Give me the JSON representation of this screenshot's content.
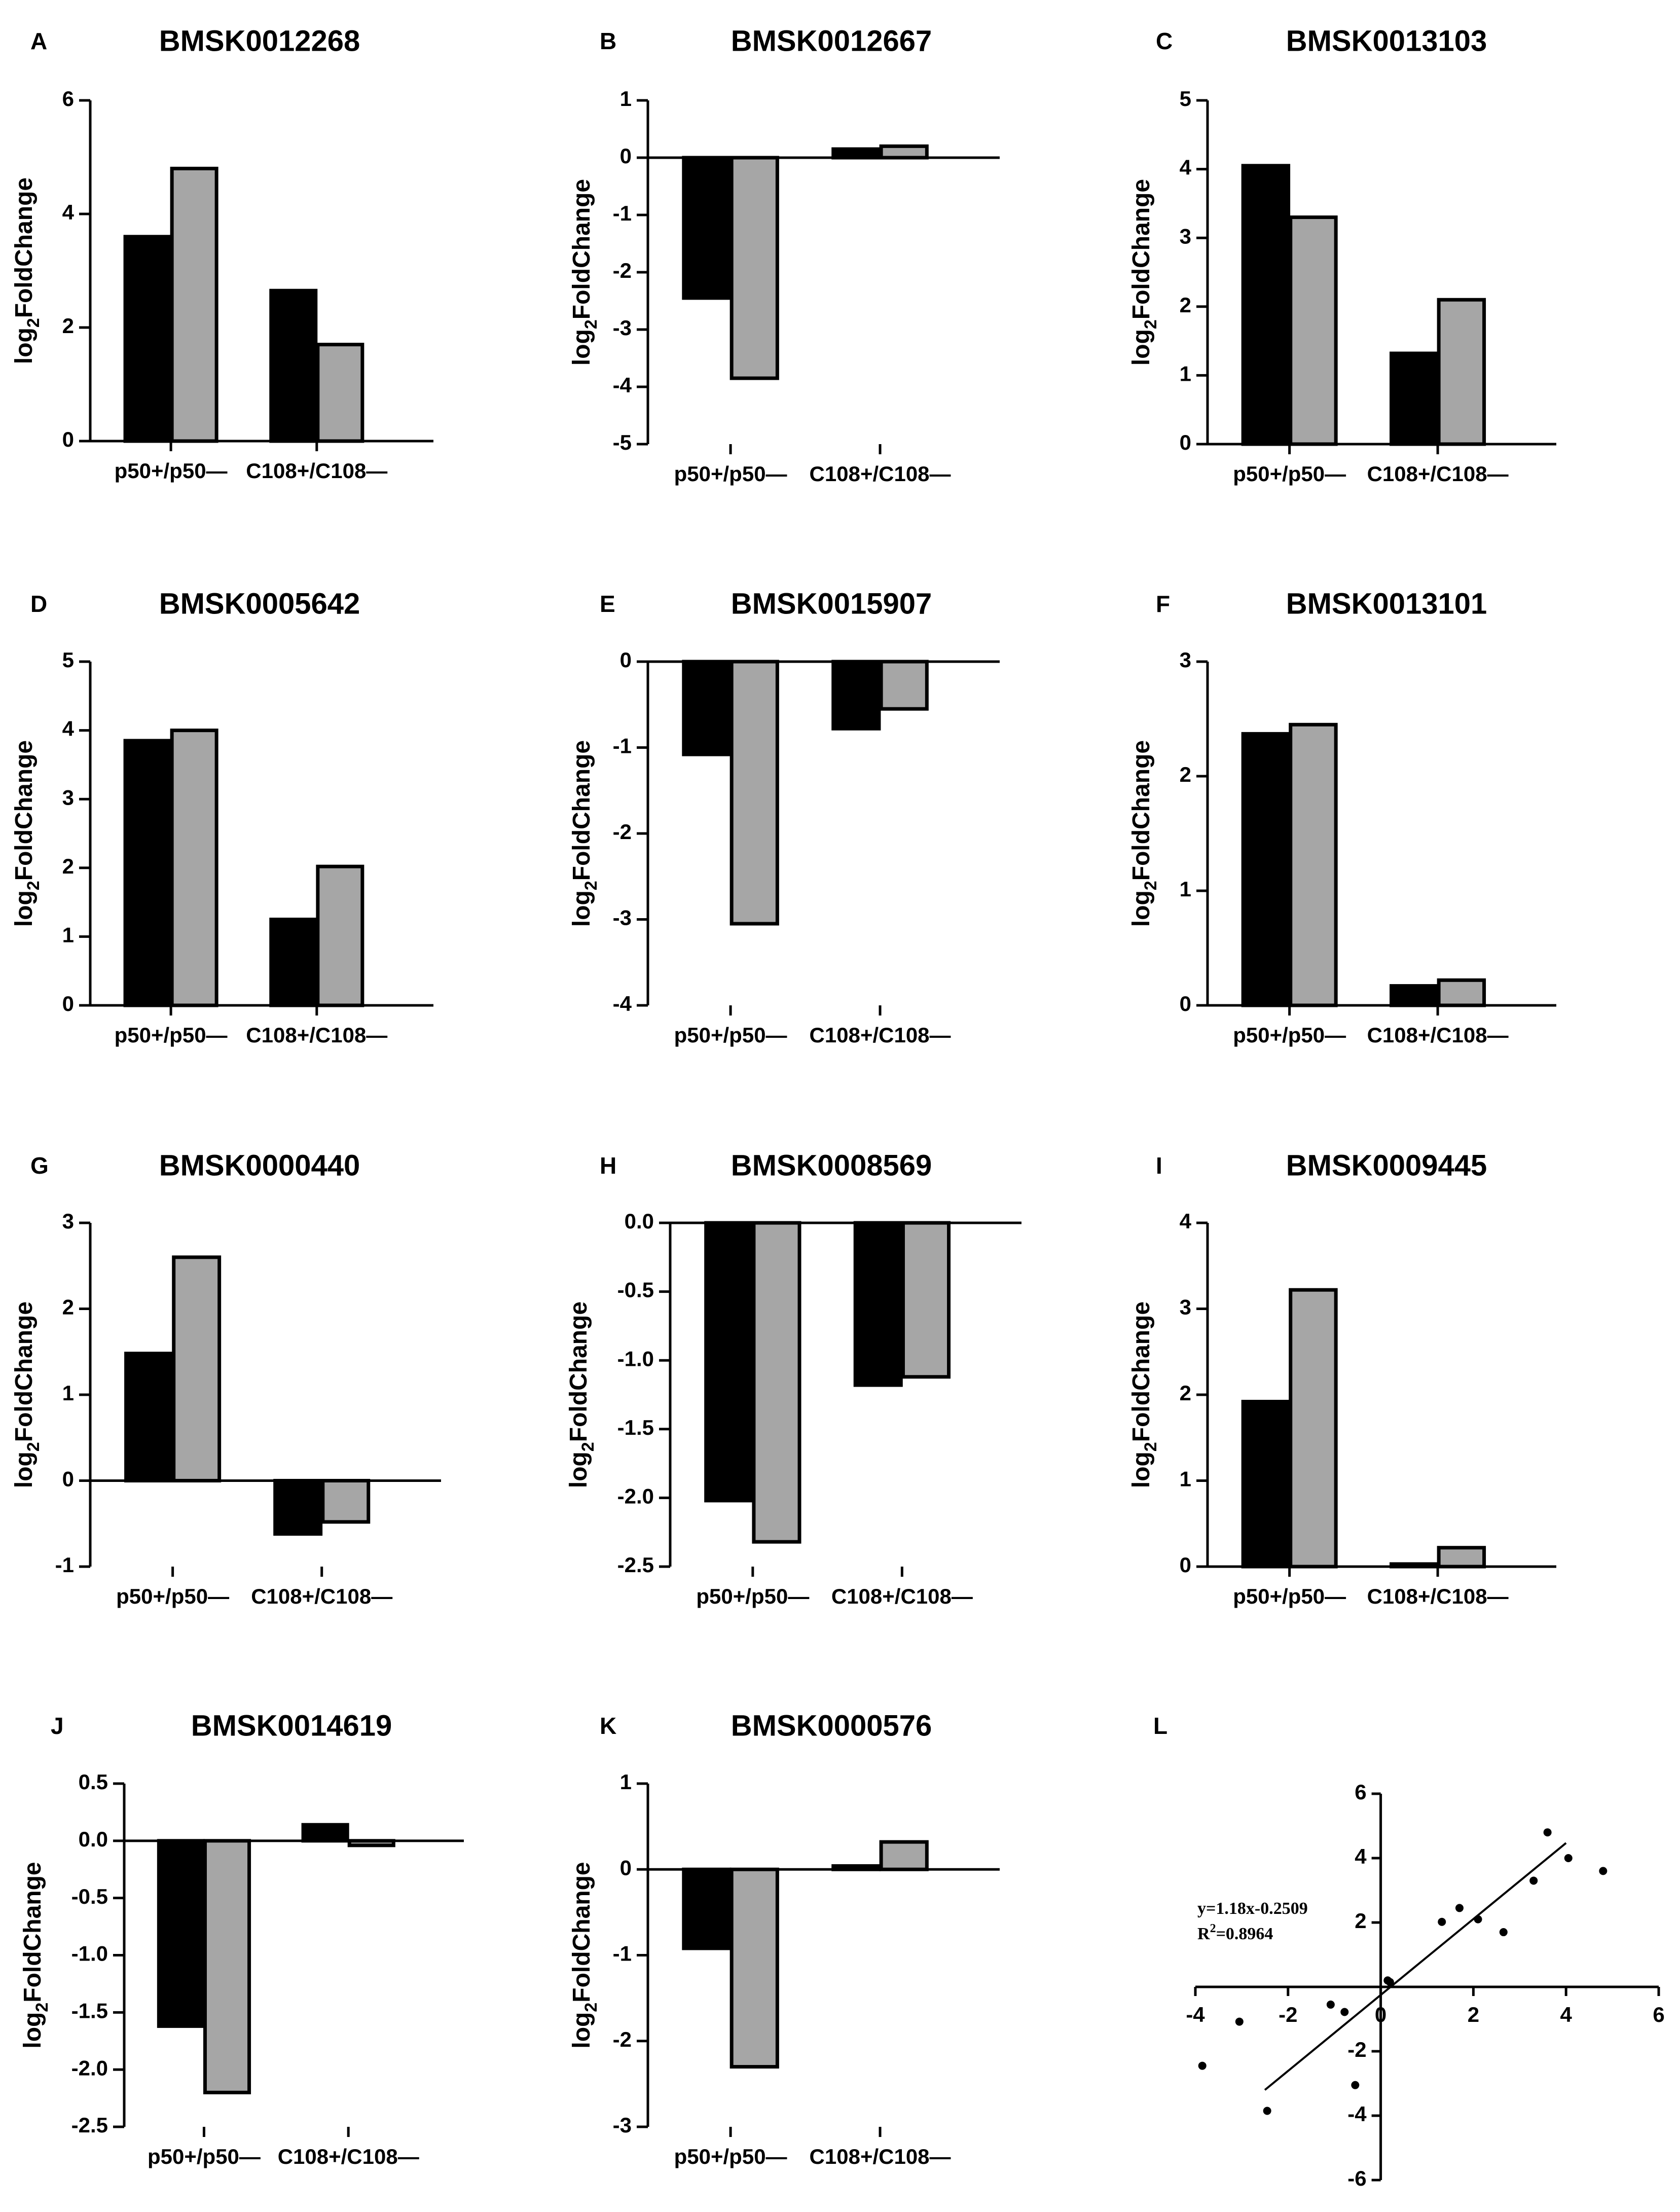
{
  "colors": {
    "series_dark": "#000000",
    "series_grey": "#a6a6a6",
    "axis": "#000000",
    "background": "#ffffff"
  },
  "shared": {
    "ylabel_main": "log",
    "ylabel_sub": "2",
    "ylabel_rest": "FoldChange"
  },
  "chart_data": [
    {
      "panel": "A",
      "title": "BMSK0012268",
      "type": "bar",
      "categories": [
        "p50+/p50—",
        "C108+/C108—"
      ],
      "series": [
        {
          "values": [
            3.6,
            2.65
          ]
        },
        {
          "values": [
            4.8,
            1.7
          ]
        }
      ],
      "ylim": [
        0,
        6
      ],
      "yticks": [
        "0",
        "2",
        "4",
        "6"
      ],
      "ytick_values": [
        0,
        2,
        4,
        6
      ]
    },
    {
      "panel": "B",
      "title": "BMSK0012667",
      "type": "bar",
      "categories": [
        "p50+/p50—",
        "C108+/C108—"
      ],
      "series": [
        {
          "values": [
            -2.45,
            0.15
          ]
        },
        {
          "values": [
            -3.85,
            0.2
          ]
        }
      ],
      "ylim": [
        -5,
        1
      ],
      "yticks": [
        "-5",
        "-4",
        "-3",
        "-2",
        "-1",
        "0",
        "1"
      ],
      "ytick_values": [
        -5,
        -4,
        -3,
        -2,
        -1,
        0,
        1
      ]
    },
    {
      "panel": "C",
      "title": "BMSK0013103",
      "type": "bar",
      "categories": [
        "p50+/p50—",
        "C108+/C108—"
      ],
      "series": [
        {
          "values": [
            4.05,
            1.32
          ]
        },
        {
          "values": [
            3.3,
            2.1
          ]
        }
      ],
      "ylim": [
        0,
        5
      ],
      "yticks": [
        "0",
        "1",
        "2",
        "3",
        "4",
        "5"
      ],
      "ytick_values": [
        0,
        1,
        2,
        3,
        4,
        5
      ]
    },
    {
      "panel": "D",
      "title": "BMSK0005642",
      "type": "bar",
      "categories": [
        "p50+/p50—",
        "C108+/C108—"
      ],
      "series": [
        {
          "values": [
            3.85,
            1.25
          ]
        },
        {
          "values": [
            4.0,
            2.02
          ]
        }
      ],
      "ylim": [
        0,
        5
      ],
      "yticks": [
        "0",
        "1",
        "2",
        "3",
        "4",
        "5"
      ],
      "ytick_values": [
        0,
        1,
        2,
        3,
        4,
        5
      ]
    },
    {
      "panel": "E",
      "title": "BMSK0015907",
      "type": "bar",
      "categories": [
        "p50+/p50—",
        "C108+/C108—"
      ],
      "series": [
        {
          "values": [
            -1.08,
            -0.78
          ]
        },
        {
          "values": [
            -3.05,
            -0.55
          ]
        }
      ],
      "ylim": [
        -4,
        0
      ],
      "yticks": [
        "-4",
        "-3",
        "-2",
        "-1",
        "0"
      ],
      "ytick_values": [
        -4,
        -3,
        -2,
        -1,
        0
      ]
    },
    {
      "panel": "F",
      "title": "BMSK0013101",
      "type": "bar",
      "categories": [
        "p50+/p50—",
        "C108+/C108—"
      ],
      "series": [
        {
          "values": [
            2.37,
            0.17
          ]
        },
        {
          "values": [
            2.45,
            0.22
          ]
        }
      ],
      "ylim": [
        0,
        3
      ],
      "yticks": [
        "0",
        "1",
        "2",
        "3"
      ],
      "ytick_values": [
        0,
        1,
        2,
        3
      ]
    },
    {
      "panel": "G",
      "title": "BMSK0000440",
      "type": "bar",
      "categories": [
        "p50+/p50—",
        "C108+/C108—"
      ],
      "series": [
        {
          "values": [
            1.48,
            -0.62
          ]
        },
        {
          "values": [
            2.6,
            -0.48
          ]
        }
      ],
      "ylim": [
        -1,
        3
      ],
      "yticks": [
        "-1",
        "0",
        "1",
        "2",
        "3"
      ],
      "ytick_values": [
        -1,
        0,
        1,
        2,
        3
      ]
    },
    {
      "panel": "H",
      "title": "BMSK0008569",
      "type": "bar",
      "categories": [
        "p50+/p50—",
        "C108+/C108—"
      ],
      "series": [
        {
          "values": [
            -2.02,
            -1.18
          ]
        },
        {
          "values": [
            -2.32,
            -1.12
          ]
        }
      ],
      "ylim": [
        -2.5,
        0
      ],
      "yticks": [
        "-2.5",
        "-2.0",
        "-1.5",
        "-1.0",
        "-0.5",
        "0.0"
      ],
      "ytick_values": [
        -2.5,
        -2.0,
        -1.5,
        -1.0,
        -0.5,
        0.0
      ]
    },
    {
      "panel": "I",
      "title": "BMSK0009445",
      "type": "bar",
      "categories": [
        "p50+/p50—",
        "C108+/C108—"
      ],
      "series": [
        {
          "values": [
            1.92,
            0.03
          ]
        },
        {
          "values": [
            3.22,
            0.22
          ]
        }
      ],
      "ylim": [
        0,
        4
      ],
      "yticks": [
        "0",
        "1",
        "2",
        "3",
        "4"
      ],
      "ytick_values": [
        0,
        1,
        2,
        3,
        4
      ]
    },
    {
      "panel": "J",
      "title": "BMSK0014619",
      "type": "bar",
      "categories": [
        "p50+/p50—",
        "C108+/C108—"
      ],
      "series": [
        {
          "values": [
            -1.62,
            0.14
          ]
        },
        {
          "values": [
            -2.2,
            -0.04
          ]
        }
      ],
      "ylim": [
        -2.5,
        0.5
      ],
      "yticks": [
        "-2.5",
        "-2.0",
        "-1.5",
        "-1.0",
        "-0.5",
        "0.0",
        "0.5"
      ],
      "ytick_values": [
        -2.5,
        -2.0,
        -1.5,
        -1.0,
        -0.5,
        0.0,
        0.5
      ]
    },
    {
      "panel": "K",
      "title": "BMSK0000576",
      "type": "bar",
      "categories": [
        "p50+/p50—",
        "C108+/C108—"
      ],
      "series": [
        {
          "values": [
            -0.92,
            0.04
          ]
        },
        {
          "values": [
            -2.3,
            0.32
          ]
        }
      ],
      "ylim": [
        -3,
        1
      ],
      "yticks": [
        "-3",
        "-2",
        "-1",
        "0",
        "1"
      ],
      "ytick_values": [
        -3,
        -2,
        -1,
        0,
        1
      ]
    },
    {
      "panel": "L",
      "title": "",
      "type": "scatter",
      "x": [
        3.6,
        4.8,
        2.65,
        1.7,
        -2.45,
        -3.85,
        0.15,
        0.2,
        4.05,
        3.3,
        1.32,
        2.1,
        -1.08,
        -3.05,
        -0.78,
        -0.55
      ],
      "y": [
        4.8,
        3.6,
        1.7,
        2.45,
        -3.85,
        -2.45,
        0.2,
        0.15,
        4.0,
        3.3,
        2.02,
        2.1,
        -0.55,
        -1.08,
        -0.78,
        -3.05
      ],
      "xlim": [
        -4,
        6
      ],
      "ylim": [
        -6,
        6
      ],
      "xticks": [
        "-4",
        "-2",
        "0",
        "2",
        "4",
        "6"
      ],
      "xtick_values": [
        -4,
        -2,
        0,
        2,
        4,
        6
      ],
      "yticks": [
        "-6",
        "-4",
        "-2",
        "0",
        "2",
        "4",
        "6"
      ],
      "ytick_values": [
        -6,
        -4,
        -2,
        0,
        2,
        4,
        6
      ],
      "fit": {
        "slope": 1.18,
        "intercept": -0.2509,
        "x_range": [
          -2.5,
          4.0
        ]
      },
      "equation": "y=1.18x-0.2509",
      "r2_label": "R",
      "r2_sup": "2",
      "r2_value": "=0.8964"
    }
  ]
}
